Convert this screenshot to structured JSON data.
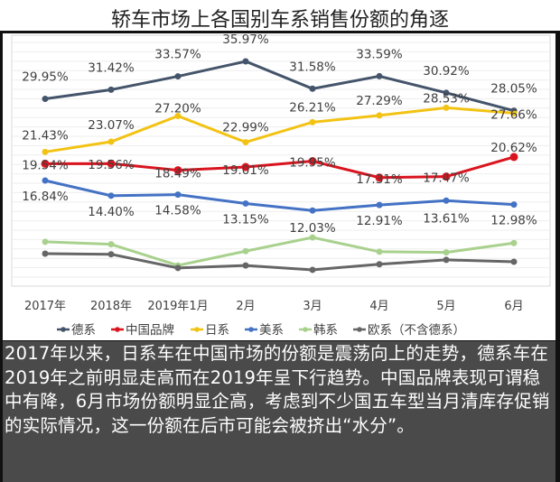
{
  "chart_data": {
    "type": "line",
    "title": "轿车市场上各国别车系销售份额的角逐",
    "categories": [
      "2017年",
      "2018年",
      "2019年1月",
      "2月",
      "3月",
      "4月",
      "5月",
      "6月"
    ],
    "xlabel": "",
    "ylabel": "",
    "grid": true,
    "legend_position": "bottom",
    "series": [
      {
        "name": "德系",
        "color": "#44546a",
        "values": [
          29.95,
          31.42,
          33.57,
          35.97,
          31.58,
          33.59,
          30.92,
          28.05
        ],
        "labels": [
          "29.95%",
          "31.42%",
          "33.57%",
          "35.97%",
          "31.58%",
          "33.59%",
          "30.92%",
          "28.05%"
        ]
      },
      {
        "name": "中国品牌",
        "color": "#d9141e",
        "values": [
          19.54,
          19.56,
          18.49,
          19.01,
          19.95,
          17.31,
          17.47,
          20.62
        ],
        "labels": [
          "19.54%",
          "19.56%",
          "18.49%",
          "19.01%",
          "19.95%",
          "17.31%",
          "17.47%",
          "20.62%"
        ]
      },
      {
        "name": "日系",
        "color": "#f2c314",
        "values": [
          21.43,
          23.07,
          27.2,
          22.99,
          26.21,
          27.29,
          28.53,
          27.66
        ],
        "labels": [
          "21.43%",
          "23.07%",
          "27.20%",
          "22.99%",
          "26.21%",
          "27.29%",
          "28.53%",
          "27.66%"
        ]
      },
      {
        "name": "美系",
        "color": "#4472c4",
        "values": [
          16.84,
          14.4,
          14.58,
          13.15,
          12.03,
          12.91,
          13.61,
          12.98
        ],
        "labels": [
          "16.84%",
          "14.40%",
          "14.58%",
          "13.15%",
          "12.03%",
          "12.91%",
          "13.61%",
          "12.98%"
        ]
      },
      {
        "name": "韩系",
        "color": "#a9d18e",
        "values": [
          7.0,
          6.6,
          3.2,
          5.5,
          7.7,
          5.4,
          5.3,
          6.8
        ],
        "labels": []
      },
      {
        "name": "欧系（不含德系）",
        "color": "#666666",
        "values": [
          5.1,
          5.0,
          2.8,
          3.2,
          2.5,
          3.4,
          4.1,
          3.8
        ],
        "labels": []
      }
    ]
  },
  "caption": "2017年以来，日系车在中国市场的份额是震荡向上的走势，德系车在2019年之前明显走高而在2019年呈下行趋势。中国品牌表现可谓稳中有降，6月市场份额明显企高，考虑到不少国五车型当月清库存促销的实际情况，这一份额在后市可能会被挤出“水分”。"
}
